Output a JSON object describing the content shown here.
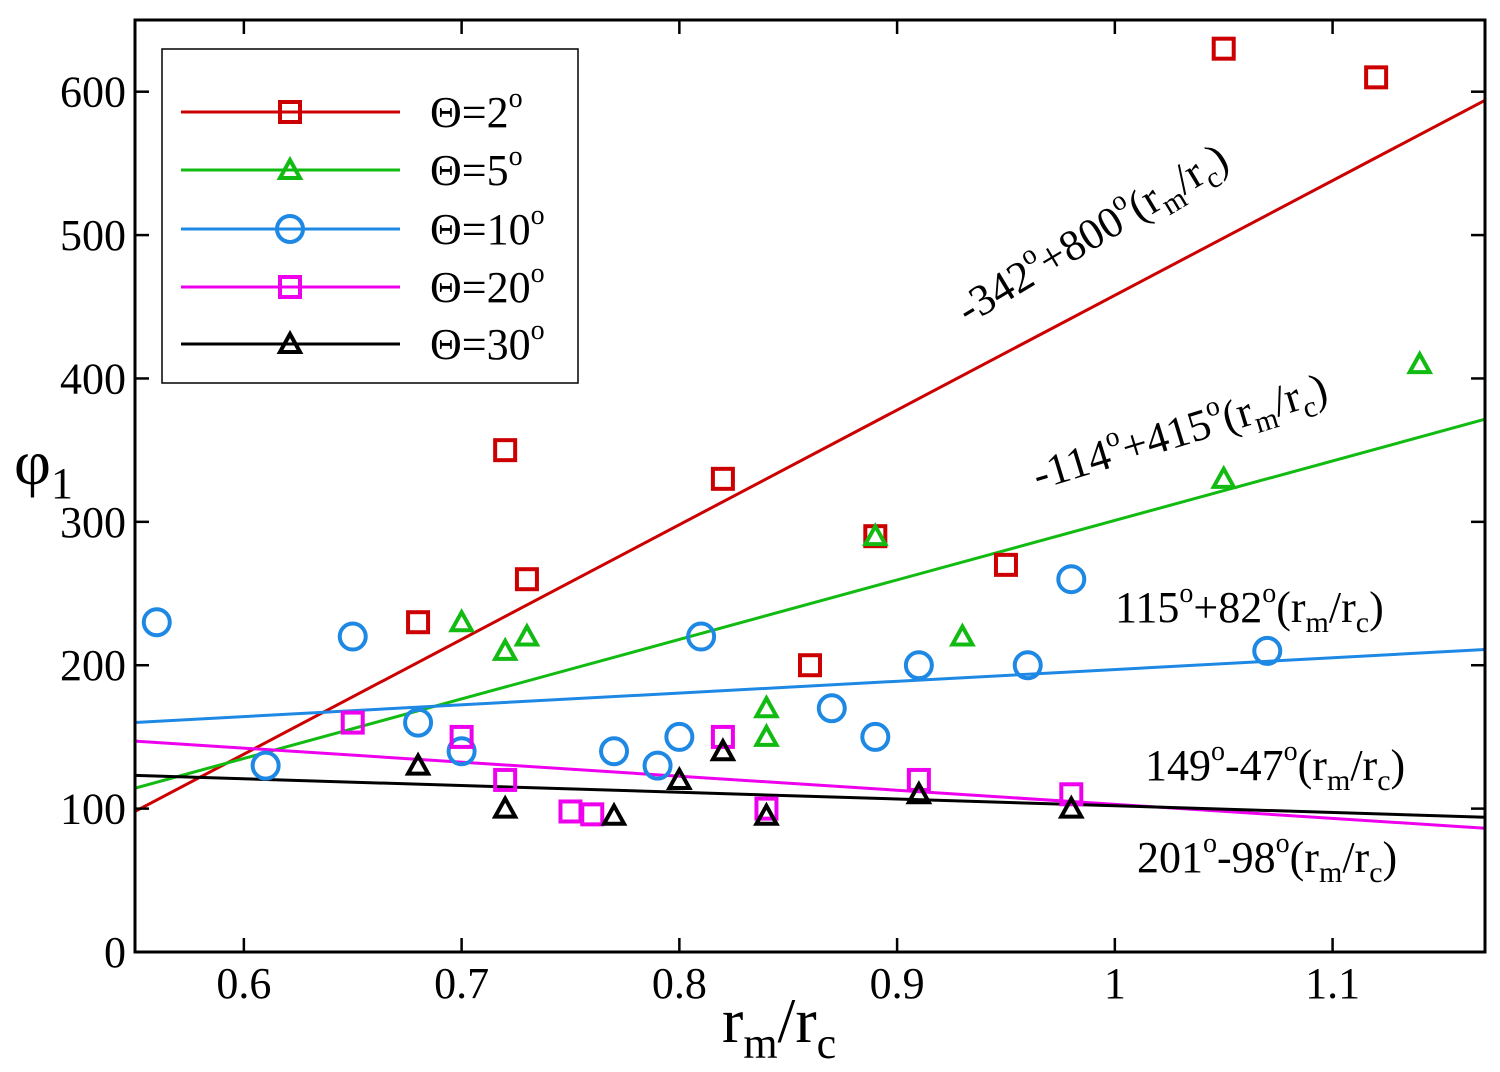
{
  "chart_data": {
    "type": "scatter",
    "title": "",
    "xlabel": {
      "main": "r",
      "sub1": "m",
      "slash": "/r",
      "sub2": "c"
    },
    "ylabel": {
      "main": "φ",
      "sub": "1"
    },
    "xlim": [
      0.55,
      1.17
    ],
    "ylim": [
      0,
      650
    ],
    "xticks": [
      0.6,
      0.7,
      0.8,
      0.9,
      1.0,
      1.1
    ],
    "xtick_labels": [
      "0.6",
      "0.7",
      "0.8",
      "0.9",
      "1",
      "1.1"
    ],
    "yticks": [
      0,
      100,
      200,
      300,
      400,
      500,
      600
    ],
    "ytick_labels": [
      "0",
      "100",
      "200",
      "300",
      "400",
      "500",
      "600"
    ],
    "legend_position": "top-left",
    "series": [
      {
        "name": "Θ=2°",
        "label_main": "Θ=2",
        "label_sup": "o",
        "color": "#cc0000",
        "marker": "square",
        "x": [
          0.68,
          0.72,
          0.73,
          0.82,
          0.86,
          0.89,
          0.95,
          1.05,
          1.12
        ],
        "y": [
          230,
          350,
          260,
          330,
          200,
          290,
          270,
          630,
          610
        ],
        "fit": {
          "intercept": -342,
          "slope": 800
        }
      },
      {
        "name": "Θ=5°",
        "label_main": "Θ=5",
        "label_sup": "o",
        "color": "#11bb11",
        "marker": "triangle",
        "x": [
          0.7,
          0.72,
          0.73,
          0.84,
          0.84,
          0.89,
          0.93,
          1.05,
          1.14
        ],
        "y": [
          230,
          210,
          220,
          170,
          150,
          290,
          220,
          330,
          410
        ],
        "fit": {
          "intercept": -114,
          "slope": 415
        }
      },
      {
        "name": "Θ=10°",
        "label_main": "Θ=10",
        "label_sup": "o",
        "color": "#1e88e5",
        "marker": "circle",
        "x": [
          0.56,
          0.61,
          0.65,
          0.68,
          0.7,
          0.77,
          0.79,
          0.8,
          0.81,
          0.87,
          0.89,
          0.91,
          0.96,
          0.98,
          1.07
        ],
        "y": [
          230,
          130,
          220,
          160,
          140,
          140,
          130,
          150,
          220,
          170,
          150,
          200,
          200,
          260,
          210
        ],
        "fit": {
          "intercept": 115,
          "slope": 82
        }
      },
      {
        "name": "Θ=20°",
        "label_main": "Θ=20",
        "label_sup": "o",
        "color": "#ee00ee",
        "marker": "square",
        "x": [
          0.65,
          0.7,
          0.72,
          0.75,
          0.76,
          0.82,
          0.84,
          0.91,
          0.98
        ],
        "y": [
          160,
          150,
          120,
          98,
          96,
          150,
          100,
          120,
          110
        ],
        "fit": {
          "intercept": 201,
          "slope": -98
        }
      },
      {
        "name": "Θ=30°",
        "label_main": "Θ=30",
        "label_sup": "o",
        "color": "#000000",
        "marker": "triangle",
        "x": [
          0.68,
          0.72,
          0.77,
          0.8,
          0.82,
          0.84,
          0.91,
          0.98
        ],
        "y": [
          130,
          100,
          95,
          120,
          140,
          95,
          110,
          100
        ],
        "fit": {
          "intercept": 149,
          "slope": -47
        }
      }
    ],
    "annotations": [
      {
        "text": "-342°+800°(rm/rc)",
        "parts": [
          "-342",
          "o",
          "+800",
          "o",
          "(r",
          "m",
          "/r",
          "c",
          ")"
        ]
      },
      {
        "text": "-114°+415°(rm/rc)",
        "parts": [
          "-114",
          "o",
          "+415",
          "o",
          "(r",
          "m",
          "/r",
          "c",
          ")"
        ]
      },
      {
        "text": "115°+82°(rm/rc)",
        "parts": [
          "115",
          "o",
          "+82",
          "o",
          "(r",
          "m",
          "/r",
          "c",
          ")"
        ]
      },
      {
        "text": "149°-47°(rm/rc)",
        "parts": [
          "149",
          "o",
          "-47",
          "o",
          "(r",
          "m",
          "/r",
          "c",
          ")"
        ]
      },
      {
        "text": "201°-98°(rm/rc)",
        "parts": [
          "201",
          "o",
          "-98",
          "o",
          "(r",
          "m",
          "/r",
          "c",
          ")"
        ]
      }
    ]
  }
}
